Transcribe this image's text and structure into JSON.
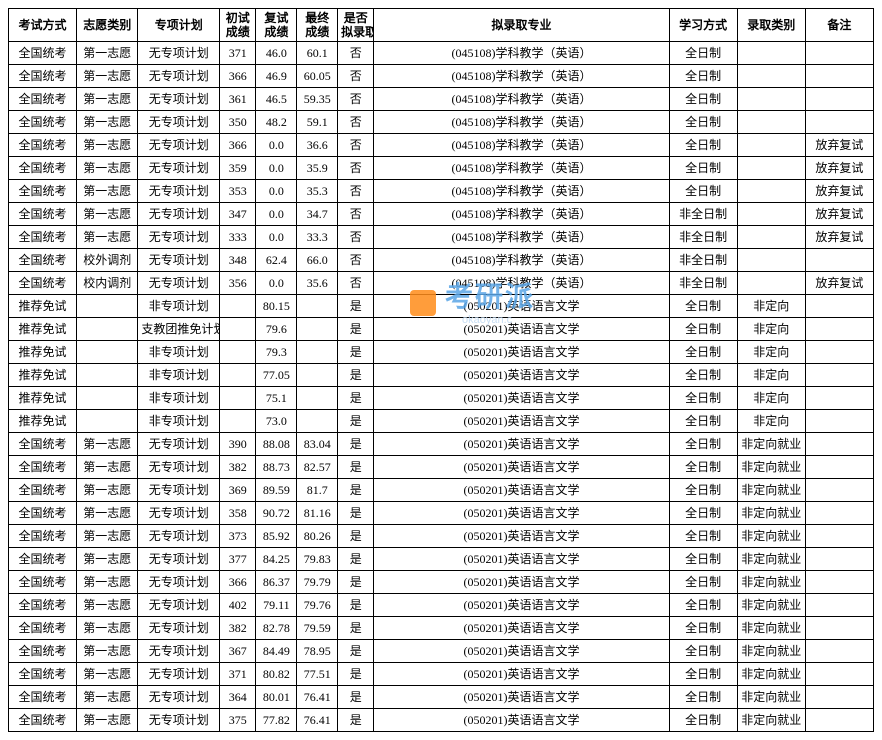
{
  "columns": [
    "考试方式",
    "志愿类别",
    "专项计划",
    "初试\n成绩",
    "复试\n成绩",
    "最终\n成绩",
    "是否\n拟录取",
    "拟录取专业",
    "学习方式",
    "录取类别",
    "备注"
  ],
  "col_classes": [
    "col-exam",
    "col-wish",
    "col-plan",
    "col-s1",
    "col-s2",
    "col-s3",
    "col-admit",
    "col-major",
    "col-study",
    "col-cat",
    "col-note"
  ],
  "watermark": {
    "main": "考研派",
    "sub": "okaoyan.c",
    "icon_color": "#ff8c1a",
    "text_color": "#5aa5e6"
  },
  "rows": [
    [
      "全国统考",
      "第一志愿",
      "无专项计划",
      "371",
      "46.0",
      "60.1",
      "否",
      "(045108)学科教学（英语）",
      "全日制",
      "",
      ""
    ],
    [
      "全国统考",
      "第一志愿",
      "无专项计划",
      "366",
      "46.9",
      "60.05",
      "否",
      "(045108)学科教学（英语）",
      "全日制",
      "",
      ""
    ],
    [
      "全国统考",
      "第一志愿",
      "无专项计划",
      "361",
      "46.5",
      "59.35",
      "否",
      "(045108)学科教学（英语）",
      "全日制",
      "",
      ""
    ],
    [
      "全国统考",
      "第一志愿",
      "无专项计划",
      "350",
      "48.2",
      "59.1",
      "否",
      "(045108)学科教学（英语）",
      "全日制",
      "",
      ""
    ],
    [
      "全国统考",
      "第一志愿",
      "无专项计划",
      "366",
      "0.0",
      "36.6",
      "否",
      "(045108)学科教学（英语）",
      "全日制",
      "",
      "放弃复试"
    ],
    [
      "全国统考",
      "第一志愿",
      "无专项计划",
      "359",
      "0.0",
      "35.9",
      "否",
      "(045108)学科教学（英语）",
      "全日制",
      "",
      "放弃复试"
    ],
    [
      "全国统考",
      "第一志愿",
      "无专项计划",
      "353",
      "0.0",
      "35.3",
      "否",
      "(045108)学科教学（英语）",
      "全日制",
      "",
      "放弃复试"
    ],
    [
      "全国统考",
      "第一志愿",
      "无专项计划",
      "347",
      "0.0",
      "34.7",
      "否",
      "(045108)学科教学（英语）",
      "非全日制",
      "",
      "放弃复试"
    ],
    [
      "全国统考",
      "第一志愿",
      "无专项计划",
      "333",
      "0.0",
      "33.3",
      "否",
      "(045108)学科教学（英语）",
      "非全日制",
      "",
      "放弃复试"
    ],
    [
      "全国统考",
      "校外调剂",
      "无专项计划",
      "348",
      "62.4",
      "66.0",
      "否",
      "(045108)学科教学（英语）",
      "非全日制",
      "",
      ""
    ],
    [
      "全国统考",
      "校内调剂",
      "无专项计划",
      "356",
      "0.0",
      "35.6",
      "否",
      "(045108)学科教学（英语）",
      "非全日制",
      "",
      "放弃复试"
    ],
    [
      "推荐免试",
      "",
      "非专项计划",
      "",
      "80.15",
      "",
      "是",
      "(050201)英语语言文学",
      "全日制",
      "非定向",
      ""
    ],
    [
      "推荐免试",
      "",
      "支教团推免计划",
      "",
      "79.6",
      "",
      "是",
      "(050201)英语语言文学",
      "全日制",
      "非定向",
      ""
    ],
    [
      "推荐免试",
      "",
      "非专项计划",
      "",
      "79.3",
      "",
      "是",
      "(050201)英语语言文学",
      "全日制",
      "非定向",
      ""
    ],
    [
      "推荐免试",
      "",
      "非专项计划",
      "",
      "77.05",
      "",
      "是",
      "(050201)英语语言文学",
      "全日制",
      "非定向",
      ""
    ],
    [
      "推荐免试",
      "",
      "非专项计划",
      "",
      "75.1",
      "",
      "是",
      "(050201)英语语言文学",
      "全日制",
      "非定向",
      ""
    ],
    [
      "推荐免试",
      "",
      "非专项计划",
      "",
      "73.0",
      "",
      "是",
      "(050201)英语语言文学",
      "全日制",
      "非定向",
      ""
    ],
    [
      "全国统考",
      "第一志愿",
      "无专项计划",
      "390",
      "88.08",
      "83.04",
      "是",
      "(050201)英语语言文学",
      "全日制",
      "非定向就业",
      ""
    ],
    [
      "全国统考",
      "第一志愿",
      "无专项计划",
      "382",
      "88.73",
      "82.57",
      "是",
      "(050201)英语语言文学",
      "全日制",
      "非定向就业",
      ""
    ],
    [
      "全国统考",
      "第一志愿",
      "无专项计划",
      "369",
      "89.59",
      "81.7",
      "是",
      "(050201)英语语言文学",
      "全日制",
      "非定向就业",
      ""
    ],
    [
      "全国统考",
      "第一志愿",
      "无专项计划",
      "358",
      "90.72",
      "81.16",
      "是",
      "(050201)英语语言文学",
      "全日制",
      "非定向就业",
      ""
    ],
    [
      "全国统考",
      "第一志愿",
      "无专项计划",
      "373",
      "85.92",
      "80.26",
      "是",
      "(050201)英语语言文学",
      "全日制",
      "非定向就业",
      ""
    ],
    [
      "全国统考",
      "第一志愿",
      "无专项计划",
      "377",
      "84.25",
      "79.83",
      "是",
      "(050201)英语语言文学",
      "全日制",
      "非定向就业",
      ""
    ],
    [
      "全国统考",
      "第一志愿",
      "无专项计划",
      "366",
      "86.37",
      "79.79",
      "是",
      "(050201)英语语言文学",
      "全日制",
      "非定向就业",
      ""
    ],
    [
      "全国统考",
      "第一志愿",
      "无专项计划",
      "402",
      "79.11",
      "79.76",
      "是",
      "(050201)英语语言文学",
      "全日制",
      "非定向就业",
      ""
    ],
    [
      "全国统考",
      "第一志愿",
      "无专项计划",
      "382",
      "82.78",
      "79.59",
      "是",
      "(050201)英语语言文学",
      "全日制",
      "非定向就业",
      ""
    ],
    [
      "全国统考",
      "第一志愿",
      "无专项计划",
      "367",
      "84.49",
      "78.95",
      "是",
      "(050201)英语语言文学",
      "全日制",
      "非定向就业",
      ""
    ],
    [
      "全国统考",
      "第一志愿",
      "无专项计划",
      "371",
      "80.82",
      "77.51",
      "是",
      "(050201)英语语言文学",
      "全日制",
      "非定向就业",
      ""
    ],
    [
      "全国统考",
      "第一志愿",
      "无专项计划",
      "364",
      "80.01",
      "76.41",
      "是",
      "(050201)英语语言文学",
      "全日制",
      "非定向就业",
      ""
    ],
    [
      "全国统考",
      "第一志愿",
      "无专项计划",
      "375",
      "77.82",
      "76.41",
      "是",
      "(050201)英语语言文学",
      "全日制",
      "非定向就业",
      ""
    ]
  ]
}
